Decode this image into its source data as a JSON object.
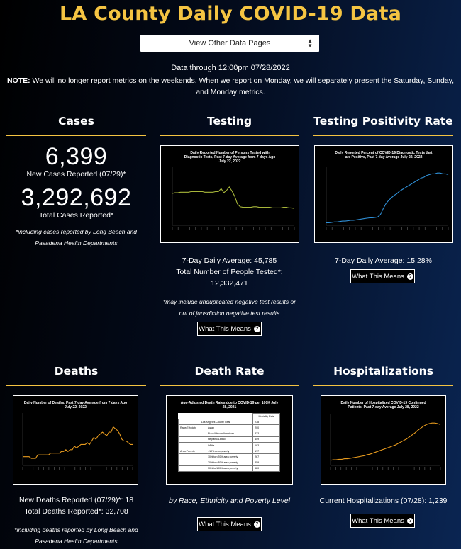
{
  "page": {
    "title": "LA County Daily COVID-19 Data",
    "select_label": "View Other Data Pages",
    "date_through": "Data through 12:00pm 07/28/2022",
    "note_label": "NOTE:",
    "note_text": " We will no longer report metrics on the weekends. When we report on Monday, we will separately present the Saturday, Sunday, and Monday metrics."
  },
  "colors": {
    "title_gold": "#f5c442",
    "chart_green": "#a7b63a",
    "chart_blue": "#2f8fd6",
    "chart_orange": "#e69a1e"
  },
  "cases": {
    "title": "Cases",
    "new_count": "6,399",
    "new_label": "New Cases Reported (07/29)*",
    "total_count": "3,292,692",
    "total_label": "Total Cases Reported*",
    "footnote": "*including cases reported by Long Beach and Pasadena Health Departments"
  },
  "testing": {
    "title": "Testing",
    "chart_title": "Daily Reported Number of Persons Tested with Diagnostic Tests, Past 7-day Average from 7 days Ago July 22, 2022",
    "avg": "7-Day Daily Average: 45,785",
    "total_label": "Total Number of People Tested*:",
    "total_value": "12,332,471",
    "footnote": "*may include unduplicated negative test results or out of jurisdiction negative test results",
    "button": "What This Means"
  },
  "positivity": {
    "title": "Testing Positivity Rate",
    "chart_title": "Daily Reported Percent of COVID-19 Diagnostic Tests that are Positive, Past 7-day Average July 22, 2022",
    "avg": "7-Day Daily Average: 15.28%",
    "button": "What This Means"
  },
  "deaths": {
    "title": "Deaths",
    "chart_title": "Daily Number of Deaths, Past 7-day Average from 7 days Ago July 22, 2022",
    "new_deaths": "New Deaths Reported (07/29)*: 18",
    "total_deaths": "Total Deaths Reported*: 32,708",
    "footnote": "*including deaths reported by Long Beach and Pasadena Health Departments"
  },
  "death_rate": {
    "title": "Death Rate",
    "chart_title": "Age-Adjusted Death Rates due to COVID-19 per 100K July 28, 2021",
    "subtitle": "by Race, Ethnicity and Poverty Level",
    "button": "What This Means",
    "table_header": "Mortality Rate",
    "table_rows": [
      [
        "Los Angeles County Total",
        "",
        "238"
      ],
      [
        "Race/Ethnicity",
        "Asian",
        "200"
      ],
      [
        "",
        "Black/African American",
        "333"
      ],
      [
        "",
        "Hispanic/Latino",
        "459"
      ],
      [
        "",
        "White",
        "183"
      ],
      [
        "Area Poverty",
        "<10% area poverty",
        "177"
      ],
      [
        "",
        "10% to <20% area poverty",
        "267"
      ],
      [
        "",
        "20% to <30% area poverty",
        "359"
      ],
      [
        "",
        "30% to 100% area poverty",
        "520"
      ]
    ]
  },
  "hospitalizations": {
    "title": "Hospitalizations",
    "chart_title": "Daily Number of Hospitalized COVID-19 Confirmed Patients, Past 7-day Average July 28, 2022",
    "current": "Current Hospitalizations (07/28): 1,239",
    "button": "What This Means"
  },
  "chart_data": [
    {
      "type": "line",
      "name": "testing",
      "color": "#a7b63a",
      "values": [
        55,
        56,
        56,
        57,
        57,
        57,
        57,
        58,
        58,
        58,
        58,
        58,
        57,
        57,
        57,
        57,
        58,
        58,
        63,
        56,
        60,
        66,
        59,
        50,
        37,
        32,
        31,
        31,
        31,
        31,
        32,
        32,
        31,
        31,
        31,
        31,
        31,
        30,
        30,
        30,
        30,
        31,
        31,
        30,
        30,
        29
      ],
      "ylim": [
        0,
        100
      ]
    },
    {
      "type": "line",
      "name": "positivity",
      "color": "#2f8fd6",
      "values": [
        3,
        3,
        3.5,
        4,
        4,
        4.5,
        5,
        5,
        5.5,
        6,
        6,
        6.5,
        7,
        7.5,
        8,
        8.5,
        9,
        9,
        9.5,
        10,
        13,
        20,
        26,
        30,
        33,
        36,
        38,
        41,
        43,
        45,
        47,
        49,
        51,
        53,
        55,
        57,
        58,
        60,
        61,
        62,
        62,
        63,
        63,
        62,
        62,
        61
      ],
      "ylim": [
        0,
        70
      ]
    },
    {
      "type": "line",
      "name": "deaths",
      "color": "#e69a1e",
      "values": [
        5,
        5,
        5,
        5,
        4,
        4,
        4,
        6,
        6,
        6,
        6,
        6,
        6,
        7,
        7,
        7,
        7,
        7,
        8,
        8,
        9,
        8,
        9,
        9,
        11,
        10,
        11,
        12,
        12,
        12,
        13,
        12,
        14,
        16,
        15,
        17,
        18,
        19,
        18,
        17,
        19,
        19,
        22,
        21,
        20,
        18,
        15,
        14,
        14,
        13,
        12,
        12
      ],
      "ylim": [
        0,
        30
      ]
    },
    {
      "type": "line",
      "name": "hospitalizations",
      "color": "#e69a1e",
      "values": [
        10,
        11,
        11,
        12,
        12,
        13,
        13,
        14,
        15,
        16,
        17,
        18,
        19,
        21,
        22,
        24,
        26,
        28,
        30,
        32,
        34,
        36,
        38,
        40,
        43,
        46,
        49,
        52,
        56,
        60,
        64,
        69,
        73,
        77,
        80,
        82,
        83,
        83,
        82,
        80
      ],
      "ylim": [
        0,
        100
      ]
    }
  ]
}
